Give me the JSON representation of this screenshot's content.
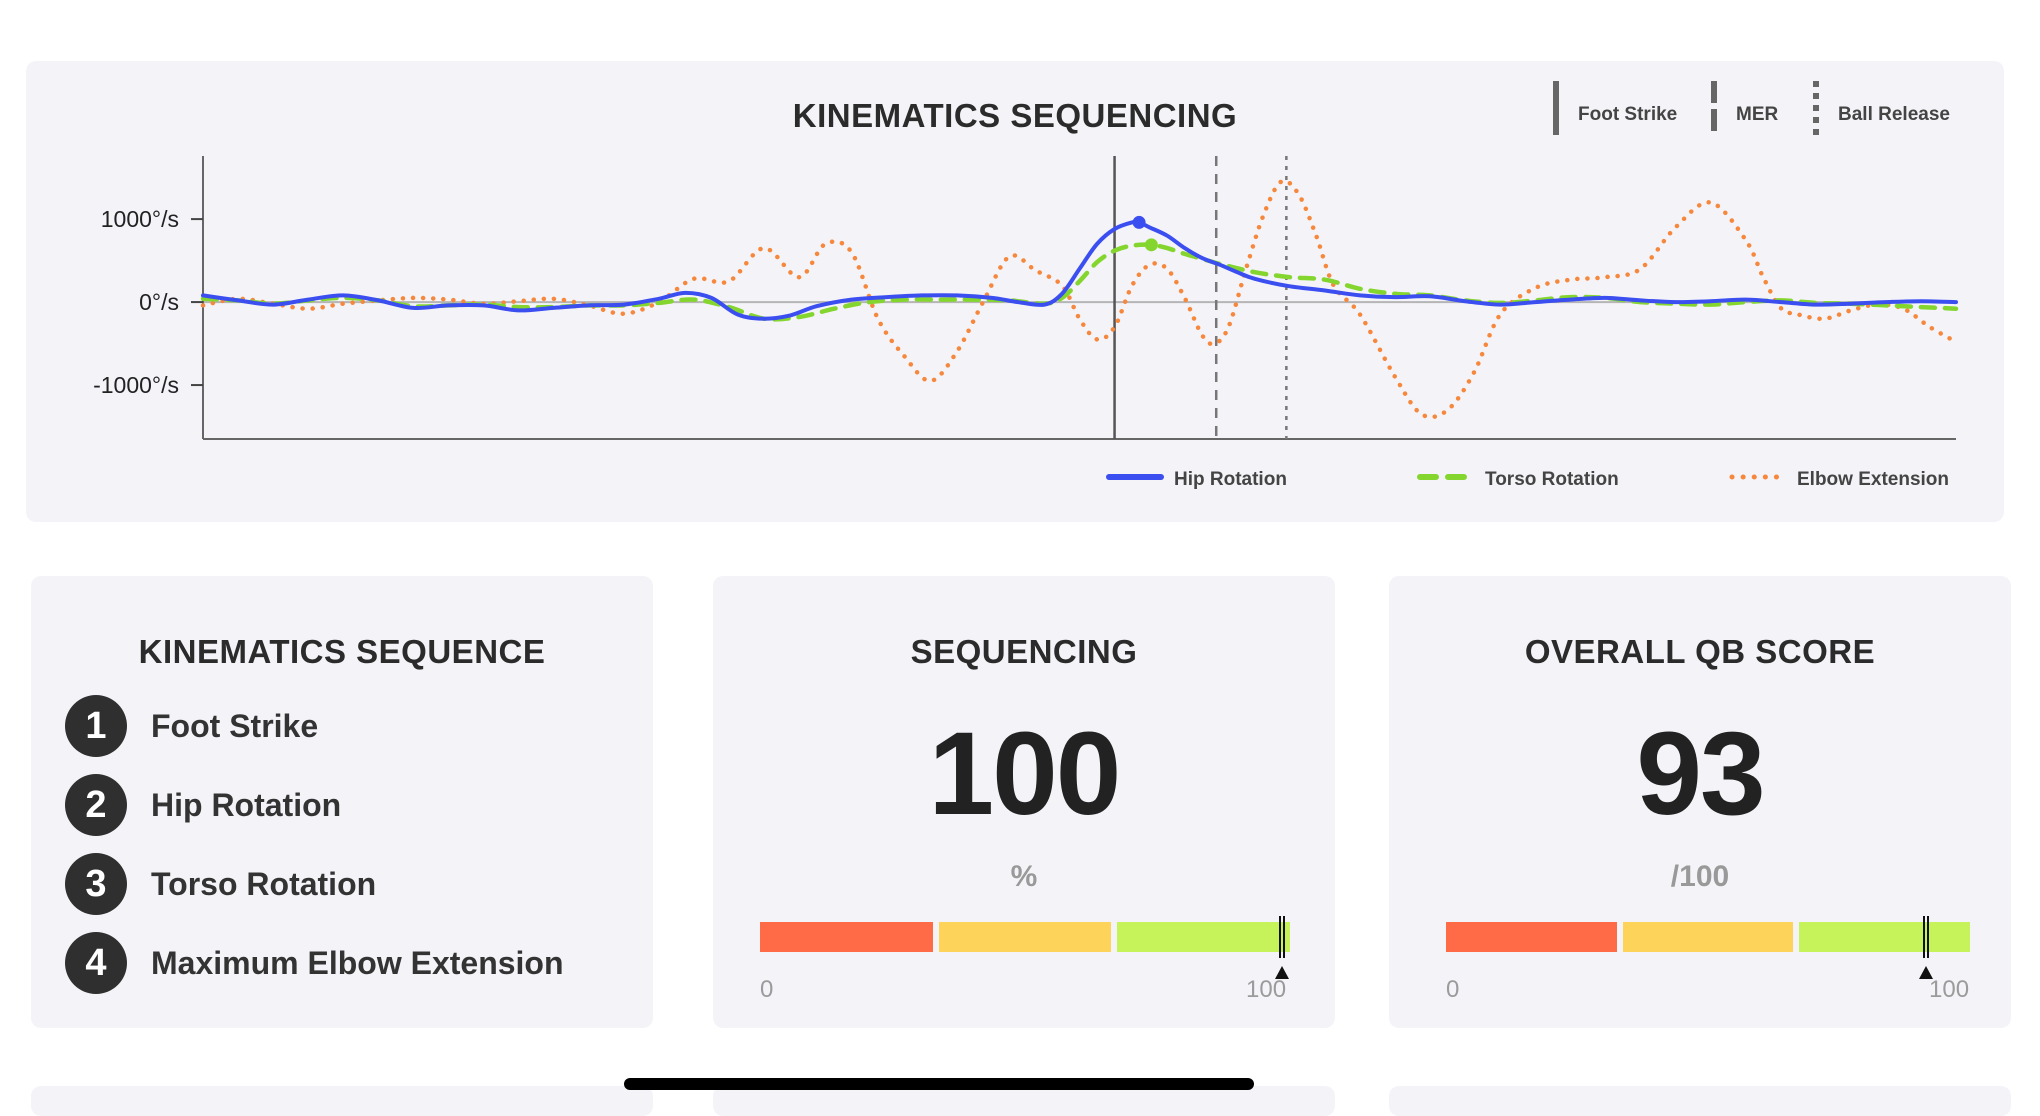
{
  "chart_data": {
    "type": "line",
    "title": "KINEMATICS SEQUENCING",
    "xlabel": "",
    "ylabel": "",
    "xlim": [
      0,
      100
    ],
    "ylim": [
      -1650,
      1700
    ],
    "yticks": [
      {
        "value": 1000,
        "label": "1000°/s"
      },
      {
        "value": 0,
        "label": "0°/s"
      },
      {
        "value": -1000,
        "label": "-1000°/s"
      }
    ],
    "events": [
      {
        "name": "Foot Strike",
        "x": 52.0,
        "style": "solid"
      },
      {
        "name": "MER",
        "x": 57.8,
        "style": "dashed"
      },
      {
        "name": "Ball Release",
        "x": 61.8,
        "style": "dotted"
      }
    ],
    "series": [
      {
        "name": "Hip Rotation",
        "color": "#3b4ef0",
        "style": "solid",
        "peak": {
          "x": 53.4,
          "y": 960
        },
        "x": [
          0,
          2,
          4,
          6,
          8,
          10,
          12,
          14,
          16,
          18,
          20,
          22,
          24,
          26,
          27.5,
          29,
          30.5,
          32,
          33.5,
          35,
          37,
          39,
          41,
          43,
          45,
          46.5,
          48,
          49,
          50,
          51,
          52,
          53,
          53.4,
          54,
          55,
          56,
          57,
          58,
          59,
          60,
          62,
          64,
          66,
          68,
          70,
          72,
          74,
          76,
          78,
          80,
          82,
          84,
          86,
          88,
          90,
          92,
          94,
          96,
          98,
          100
        ],
        "y": [
          80,
          20,
          -30,
          30,
          80,
          20,
          -70,
          -40,
          -40,
          -100,
          -70,
          -40,
          -30,
          40,
          110,
          50,
          -150,
          -200,
          -160,
          -50,
          30,
          60,
          80,
          80,
          50,
          0,
          -30,
          100,
          400,
          700,
          880,
          960,
          960,
          900,
          800,
          650,
          530,
          450,
          360,
          280,
          190,
          140,
          80,
          60,
          70,
          10,
          -30,
          0,
          30,
          50,
          20,
          0,
          10,
          30,
          0,
          -30,
          -20,
          0,
          10,
          0
        ]
      },
      {
        "name": "Torso Rotation",
        "color": "#84d62f",
        "style": "dashed",
        "peak": {
          "x": 54.1,
          "y": 690
        },
        "x": [
          0,
          2,
          4,
          6,
          8,
          10,
          12,
          14,
          16,
          18,
          20,
          22,
          24,
          26,
          28,
          30,
          32,
          34,
          36,
          38,
          40,
          42,
          44,
          46,
          48,
          49,
          50,
          51,
          52,
          53,
          54.1,
          55,
          56,
          57,
          58,
          60,
          62,
          64,
          66,
          68,
          70,
          72,
          74,
          76,
          78,
          80,
          82,
          84,
          86,
          88,
          90,
          92,
          94,
          96,
          98,
          100
        ],
        "y": [
          40,
          20,
          -20,
          20,
          50,
          20,
          -50,
          -40,
          -30,
          -60,
          -60,
          -40,
          -40,
          -10,
          30,
          -60,
          -200,
          -180,
          -80,
          0,
          30,
          30,
          30,
          20,
          -20,
          50,
          250,
          480,
          620,
          680,
          690,
          650,
          580,
          520,
          460,
          360,
          300,
          270,
          160,
          100,
          80,
          20,
          -10,
          20,
          60,
          50,
          0,
          -20,
          -30,
          0,
          20,
          -10,
          -20,
          -40,
          -60,
          -80
        ]
      },
      {
        "name": "Elbow Extension",
        "color": "#f6883d",
        "style": "dotted",
        "x": [
          0,
          2,
          4,
          6,
          8,
          10,
          12,
          14,
          16,
          18,
          20,
          22,
          24,
          26,
          28,
          30,
          32,
          34,
          35.5,
          37,
          38.5,
          40,
          41.5,
          43,
          44.5,
          46,
          47.5,
          49,
          50,
          51,
          52,
          53,
          54,
          55,
          56,
          57,
          57.7,
          58.5,
          59.5,
          60.5,
          61.5,
          62.5,
          63.5,
          64.5,
          66,
          68,
          69.5,
          71,
          72.5,
          74,
          76,
          78,
          80,
          82,
          84,
          86,
          88,
          89,
          90,
          91,
          92.5,
          94,
          95.5,
          97,
          98.5,
          100
        ],
        "y": [
          -40,
          40,
          -20,
          -80,
          -20,
          20,
          50,
          30,
          -20,
          10,
          40,
          -40,
          -140,
          0,
          280,
          250,
          650,
          300,
          700,
          600,
          -200,
          -650,
          -950,
          -600,
          0,
          550,
          380,
          200,
          -200,
          -450,
          -300,
          200,
          450,
          400,
          50,
          -400,
          -500,
          -300,
          400,
          1050,
          1450,
          1300,
          800,
          200,
          -150,
          -900,
          -1350,
          -1300,
          -850,
          -150,
          170,
          270,
          300,
          400,
          900,
          1200,
          750,
          300,
          -70,
          -150,
          -200,
          -100,
          -30,
          -80,
          -300,
          -480
        ]
      }
    ],
    "legend": {
      "placement": "bottom-right"
    }
  },
  "event_legend": [
    "Foot Strike",
    "MER",
    "Ball Release"
  ],
  "sequence_card": {
    "title": "KINEMATICS SEQUENCE",
    "items": [
      {
        "num": "1",
        "label": "Foot Strike"
      },
      {
        "num": "2",
        "label": "Hip Rotation"
      },
      {
        "num": "3",
        "label": "Torso Rotation"
      },
      {
        "num": "4",
        "label": "Maximum Elbow Extension"
      }
    ]
  },
  "sequencing_card": {
    "title": "SEQUENCING",
    "value": "100",
    "unit": "%",
    "gauge_min": "0",
    "gauge_max": "100",
    "gauge_level": 100
  },
  "qb_card": {
    "title": "OVERALL QB SCORE",
    "value": "93",
    "unit": "/100",
    "gauge_min": "0",
    "gauge_max": "100",
    "gauge_level": 93
  },
  "gauge_colors": [
    "#ff6b47",
    "#fdd35a",
    "#c6f35a"
  ]
}
